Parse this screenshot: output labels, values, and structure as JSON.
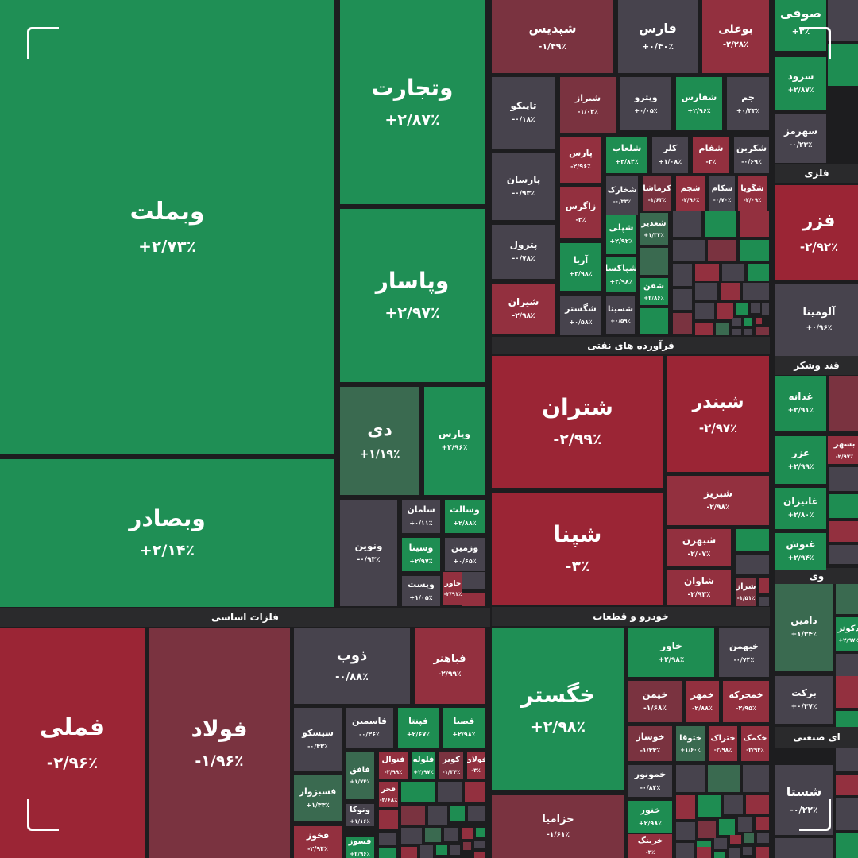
{
  "colors": {
    "strong_green": "#1f8f55",
    "green": "#1e8d52",
    "dark_green": "#3a6a50",
    "strong_red": "#9b2535",
    "red": "#93303f",
    "dark_red": "#7a3340",
    "neutral": "#47434d",
    "background": "#1d1d1f"
  },
  "sectors": [
    {
      "label": "فلزات اساسی"
    },
    {
      "label": "فرآورده های نفتی"
    },
    {
      "label": "خودرو و قطعات"
    },
    {
      "label": "فلزی"
    },
    {
      "label": "قند وشکر"
    },
    {
      "label": "وی"
    },
    {
      "label": "ای صنعتی"
    }
  ],
  "tiles": [
    {
      "symbol": "وبملت",
      "change": "+۲/۷۳٪",
      "tone": "strong_green"
    },
    {
      "symbol": "وبصادر",
      "change": "+۲/۱۴٪",
      "tone": "strong_green"
    },
    {
      "symbol": "وتجارت",
      "change": "+۲/۸۷٪",
      "tone": "strong_green"
    },
    {
      "symbol": "وپاسار",
      "change": "+۲/۹۷٪",
      "tone": "strong_green"
    },
    {
      "symbol": "دی",
      "change": "+۱/۱۹٪",
      "tone": "dark_green"
    },
    {
      "symbol": "وپارس",
      "change": "+۲/۹۶٪",
      "tone": "strong_green"
    },
    {
      "symbol": "ونوین",
      "change": "-۰/۹۳٪",
      "tone": "neutral"
    },
    {
      "symbol": "سامان",
      "change": "+۰/۱۱٪",
      "tone": "neutral"
    },
    {
      "symbol": "وسالت",
      "change": "+۲/۸۸٪",
      "tone": "green"
    },
    {
      "symbol": "وسینا",
      "change": "+۲/۹۷٪",
      "tone": "green"
    },
    {
      "symbol": "وزمین",
      "change": "+۰/۶۵٪",
      "tone": "neutral"
    },
    {
      "symbol": "وپست",
      "change": "+۱/۰۵٪",
      "tone": "neutral"
    },
    {
      "symbol": "خاور",
      "change": "-۲/۹۱٪",
      "tone": "red"
    },
    {
      "symbol": "شپدیس",
      "change": "-۱/۴۹٪",
      "tone": "dark_red"
    },
    {
      "symbol": "فارس",
      "change": "+۰/۴۰٪",
      "tone": "neutral"
    },
    {
      "symbol": "بوعلی",
      "change": "-۲/۲۸٪",
      "tone": "red"
    },
    {
      "symbol": "تاپیکو",
      "change": "-۰/۱۸٪",
      "tone": "neutral"
    },
    {
      "symbol": "شیراز",
      "change": "-۱/۰۴٪",
      "tone": "dark_red"
    },
    {
      "symbol": "وپترو",
      "change": "+۰/۰۵٪",
      "tone": "neutral"
    },
    {
      "symbol": "شفارس",
      "change": "+۲/۹۶٪",
      "tone": "green"
    },
    {
      "symbol": "جم",
      "change": "+۰/۴۳٪",
      "tone": "neutral"
    },
    {
      "symbol": "پارسان",
      "change": "-۰/۹۳٪",
      "tone": "neutral"
    },
    {
      "symbol": "پترول",
      "change": "-۰/۷۸٪",
      "tone": "neutral"
    },
    {
      "symbol": "شیران",
      "change": "-۲/۹۸٪",
      "tone": "red"
    },
    {
      "symbol": "پارس",
      "change": "-۲/۹۶٪",
      "tone": "red"
    },
    {
      "symbol": "زاگرس",
      "change": "-۳٪",
      "tone": "red"
    },
    {
      "symbol": "آریا",
      "change": "+۲/۹۸٪",
      "tone": "green"
    },
    {
      "symbol": "شگستر",
      "change": "+۰/۵۸٪",
      "tone": "neutral"
    },
    {
      "symbol": "شلعاب",
      "change": "+۲/۸۴٪",
      "tone": "green"
    },
    {
      "symbol": "کلر",
      "change": "+۱/۰۸٪",
      "tone": "neutral"
    },
    {
      "symbol": "شفام",
      "change": "-۳٪",
      "tone": "red"
    },
    {
      "symbol": "شکربن",
      "change": "-۰/۶۹٪",
      "tone": "neutral"
    },
    {
      "symbol": "شخارک",
      "change": "-۰/۳۳٪",
      "tone": "neutral"
    },
    {
      "symbol": "کرماشا",
      "change": "-۱/۶۳٪",
      "tone": "dark_red"
    },
    {
      "symbol": "شجم",
      "change": "-۲/۹۶٪",
      "tone": "red"
    },
    {
      "symbol": "شکام",
      "change": "-۰/۷۰٪",
      "tone": "neutral"
    },
    {
      "symbol": "شگویا",
      "change": "-۲/۰۹٪",
      "tone": "red"
    },
    {
      "symbol": "شپلی",
      "change": "+۲/۹۲٪",
      "tone": "green"
    },
    {
      "symbol": "شغدیر",
      "change": "+۱/۳۳٪",
      "tone": "dark_green"
    },
    {
      "symbol": "شپاکسا",
      "change": "+۲/۹۸٪",
      "tone": "green"
    },
    {
      "symbol": "شفن",
      "change": "+۲/۸۶٪",
      "tone": "green"
    },
    {
      "symbol": "شسینا",
      "change": "+۰/۵۹٪",
      "tone": "neutral"
    },
    {
      "symbol": "شتران",
      "change": "-۲/۹۹٪",
      "tone": "strong_red"
    },
    {
      "symbol": "شپنا",
      "change": "-۳٪",
      "tone": "strong_red"
    },
    {
      "symbol": "شبندر",
      "change": "-۲/۹۷٪",
      "tone": "strong_red"
    },
    {
      "symbol": "شبریز",
      "change": "-۲/۹۸٪",
      "tone": "red"
    },
    {
      "symbol": "شبهرن",
      "change": "-۲/۰۷٪",
      "tone": "red"
    },
    {
      "symbol": "شاوان",
      "change": "-۲/۹۳٪",
      "tone": "red"
    },
    {
      "symbol": "شراز",
      "change": "-۱/۵۱٪",
      "tone": "dark_red"
    },
    {
      "symbol": "فملی",
      "change": "-۲/۹۶٪",
      "tone": "strong_red"
    },
    {
      "symbol": "فولاد",
      "change": "-۱/۹۶٪",
      "tone": "dark_red"
    },
    {
      "symbol": "ذوب",
      "change": "-۰/۸۸٪",
      "tone": "neutral"
    },
    {
      "symbol": "فباهنر",
      "change": "-۲/۹۹٪",
      "tone": "red"
    },
    {
      "symbol": "سیسکو",
      "change": "-۰/۴۳٪",
      "tone": "neutral"
    },
    {
      "symbol": "فاسمین",
      "change": "-۰/۳۶٪",
      "tone": "neutral"
    },
    {
      "symbol": "فپنتا",
      "change": "+۲/۶۷٪",
      "tone": "green"
    },
    {
      "symbol": "فصبا",
      "change": "+۲/۹۸٪",
      "tone": "green"
    },
    {
      "symbol": "فافق",
      "change": "+۱/۷۴٪",
      "tone": "dark_green"
    },
    {
      "symbol": "فنوال",
      "change": "-۲/۹۹٪",
      "tone": "red"
    },
    {
      "symbol": "فلوله",
      "change": "+۲/۹۷٪",
      "tone": "green"
    },
    {
      "symbol": "کویر",
      "change": "-۱/۳۴٪",
      "tone": "dark_red"
    },
    {
      "symbol": "فولای",
      "change": "-۳٪",
      "tone": "red"
    },
    {
      "symbol": "فسبزوار",
      "change": "+۱/۳۳٪",
      "tone": "dark_green"
    },
    {
      "symbol": "فجر",
      "change": "-۲/۶۸٪",
      "tone": "red"
    },
    {
      "symbol": "ونوکا",
      "change": "+۱/۱۶٪",
      "tone": "neutral"
    },
    {
      "symbol": "فخوز",
      "change": "-۲/۹۴٪",
      "tone": "red"
    },
    {
      "symbol": "فسوز",
      "change": "+۲/۹۶٪",
      "tone": "green"
    },
    {
      "symbol": "خگستر",
      "change": "+۲/۹۸٪",
      "tone": "strong_green"
    },
    {
      "symbol": "خزامیا",
      "change": "-۱/۶۱٪",
      "tone": "dark_red"
    },
    {
      "symbol": "خاور",
      "change": "+۲/۹۸٪",
      "tone": "green"
    },
    {
      "symbol": "خیهمن",
      "change": "-۰/۷۴٪",
      "tone": "neutral"
    },
    {
      "symbol": "خیمن",
      "change": "-۱/۶۸٪",
      "tone": "dark_red"
    },
    {
      "symbol": "خمهر",
      "change": "-۲/۸۸٪",
      "tone": "red"
    },
    {
      "symbol": "خمحرکه",
      "change": "-۲/۹۵٪",
      "tone": "red"
    },
    {
      "symbol": "خوساز",
      "change": "-۱/۳۳٪",
      "tone": "dark_red"
    },
    {
      "symbol": "ختوقا",
      "change": "+۱/۶۰٪",
      "tone": "dark_green"
    },
    {
      "symbol": "ختراک",
      "change": "-۲/۹۸٪",
      "tone": "red"
    },
    {
      "symbol": "خکمک",
      "change": "-۲/۹۴٪",
      "tone": "red"
    },
    {
      "symbol": "خمونور",
      "change": "-۰/۸۴٪",
      "tone": "neutral"
    },
    {
      "symbol": "خنور",
      "change": "+۲/۹۸٪",
      "tone": "green"
    },
    {
      "symbol": "خرینگ",
      "change": "-۳٪",
      "tone": "red"
    },
    {
      "symbol": "صوفی",
      "change": "+۳٪",
      "tone": "green"
    },
    {
      "symbol": "سرود",
      "change": "+۲/۸۷٪",
      "tone": "green"
    },
    {
      "symbol": "سهرمز",
      "change": "-۰/۲۳٪",
      "tone": "neutral"
    },
    {
      "symbol": "فزر",
      "change": "-۲/۹۲٪",
      "tone": "strong_red"
    },
    {
      "symbol": "آلومینا",
      "change": "+۰/۹۶٪",
      "tone": "neutral"
    },
    {
      "symbol": "غدانه",
      "change": "+۲/۹۱٪",
      "tone": "green"
    },
    {
      "symbol": "غزر",
      "change": "+۲/۹۹٪",
      "tone": "green"
    },
    {
      "symbol": "بشهر",
      "change": "-۲/۹۷٪",
      "tone": "red"
    },
    {
      "symbol": "غانیزان",
      "change": "+۲/۸۰٪",
      "tone": "green"
    },
    {
      "symbol": "غنوش",
      "change": "+۲/۹۴٪",
      "tone": "green"
    },
    {
      "symbol": "دامین",
      "change": "+۱/۳۴٪",
      "tone": "dark_green"
    },
    {
      "symbol": "دکوثر",
      "change": "+۲/۹۷٪",
      "tone": "green"
    },
    {
      "symbol": "برکت",
      "change": "+۰/۳۷٪",
      "tone": "neutral"
    },
    {
      "symbol": "شستا",
      "change": "-۰/۲۲٪",
      "tone": "neutral"
    }
  ],
  "filler_tones": [
    "neutral",
    "red",
    "neutral",
    "green",
    "red",
    "neutral",
    "dark_red",
    "green",
    "neutral",
    "red",
    "neutral",
    "green",
    "dark_green",
    "neutral",
    "red",
    "neutral",
    "green",
    "neutral",
    "dark_red",
    "neutral",
    "red",
    "green",
    "neutral",
    "neutral",
    "red",
    "dark_green",
    "neutral",
    "green",
    "red",
    "neutral",
    "neutral",
    "dark_red",
    "green",
    "neutral",
    "red",
    "neutral",
    "green",
    "neutral",
    "red",
    "dark_red",
    "neutral",
    "green",
    "neutral",
    "red",
    "neutral",
    "dark_green",
    "neutral",
    "red",
    "green",
    "neutral",
    "red",
    "neutral",
    "green",
    "neutral",
    "dark_red",
    "neutral",
    "green",
    "red",
    "neutral",
    "dark_green",
    "neutral",
    "red",
    "green",
    "neutral",
    "red",
    "neutral",
    "dark_red",
    "green",
    "neutral",
    "red",
    "neutral",
    "green",
    "neutral",
    "red",
    "dark_green",
    "neutral",
    "red",
    "green",
    "neutral",
    "neutral",
    "red",
    "neutral",
    "green",
    "dark_red",
    "neutral",
    "green",
    "red",
    "neutral",
    "dark_green",
    "neutral",
    "red",
    "green",
    "neutral",
    "red",
    "neutral",
    "green"
  ]
}
